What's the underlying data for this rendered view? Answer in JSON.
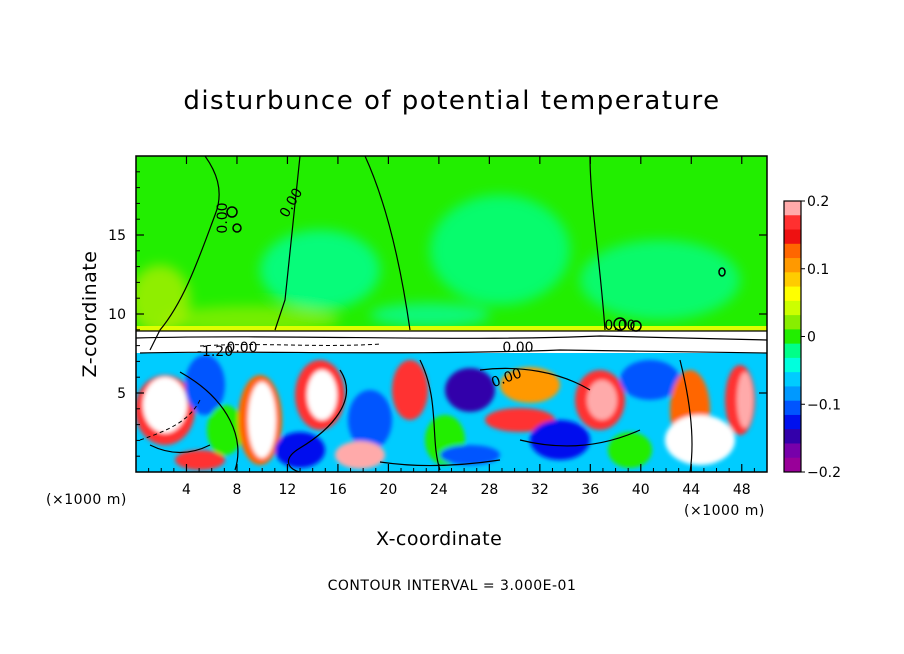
{
  "chart_data": {
    "type": "heatmap",
    "title": "disturbunce of potential temperature",
    "xlabel": "X-coordinate",
    "ylabel": "Z-coordinate",
    "x_unit": "(×1000 m)",
    "y_unit": "(×1000 m)",
    "footnote": "CONTOUR INTERVAL = 3.000E-01",
    "xlim": [
      0,
      50
    ],
    "ylim": [
      0,
      20
    ],
    "x_ticks": [
      4,
      8,
      12,
      16,
      20,
      24,
      28,
      32,
      36,
      40,
      44,
      48
    ],
    "y_ticks": [
      5,
      10,
      15
    ],
    "colorbar": {
      "range": [
        -0.2,
        0.2
      ],
      "tick_values": [
        0.2,
        0.1,
        0,
        -0.1,
        -0.2
      ],
      "tick_labels": [
        "0.2",
        "0.1",
        "0",
        "−0.1",
        "−0.2"
      ],
      "colors": [
        "#ffaaaa",
        "#ff3030",
        "#ee1111",
        "#ff6600",
        "#ff9900",
        "#ffcc00",
        "#ffff00",
        "#ccff00",
        "#88ee00",
        "#22ee00",
        "#00ff88",
        "#00ffdd",
        "#00ccff",
        "#0099ff",
        "#0055ff",
        "#0011ee",
        "#3300aa",
        "#7700aa",
        "#990099"
      ]
    },
    "contour_labels": [
      "0.00",
      "0.00",
      "-1.20",
      "0.00",
      "0.00",
      "0.00",
      "0.00"
    ],
    "layers": [
      {
        "z_range": [
          9,
          20
        ],
        "description_value": 0,
        "dominant_colors": [
          "#22ee00",
          "#00ff88"
        ]
      },
      {
        "z_range": [
          7.5,
          9
        ],
        "description_value": 0,
        "dominant_colors": [
          "#ffffff"
        ]
      },
      {
        "z_range": [
          0,
          7.5
        ],
        "description_value": 0,
        "dominant_colors": [
          "#ff3030",
          "#0055ff",
          "#00ccff",
          "#ffffff"
        ]
      }
    ]
  }
}
